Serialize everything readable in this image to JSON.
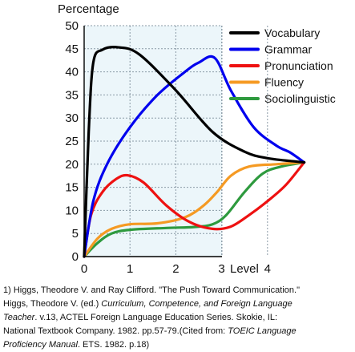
{
  "chart_data": {
    "type": "line",
    "ylabel": "Percentage",
    "xlabel": "Level",
    "xlim": [
      0,
      5
    ],
    "ylim": [
      0,
      50
    ],
    "x_ticks": [
      "0",
      "1",
      "2",
      "3",
      "4"
    ],
    "y_ticks": [
      "0",
      "5",
      "10",
      "15",
      "20",
      "25",
      "30",
      "35",
      "40",
      "45",
      "50"
    ],
    "grid": true,
    "legend_position": "right",
    "series": [
      {
        "name": "Vocabulary",
        "color": "#000000",
        "points": [
          [
            0,
            0
          ],
          [
            0.1,
            27
          ],
          [
            0.2,
            42
          ],
          [
            0.4,
            44.8
          ],
          [
            0.75,
            45.3
          ],
          [
            1.2,
            43.8
          ],
          [
            2,
            36
          ],
          [
            2.8,
            27
          ],
          [
            3.5,
            22.7
          ],
          [
            4,
            21.3
          ],
          [
            4.6,
            20.6
          ],
          [
            4.8,
            20.4
          ]
        ]
      },
      {
        "name": "Grammar",
        "color": "#0000ee",
        "points": [
          [
            0,
            0
          ],
          [
            0.2,
            12
          ],
          [
            0.5,
            20
          ],
          [
            1,
            28
          ],
          [
            1.6,
            35
          ],
          [
            2.2,
            40
          ],
          [
            2.5,
            42
          ],
          [
            2.85,
            43
          ],
          [
            3.2,
            36
          ],
          [
            3.7,
            28
          ],
          [
            4.2,
            24
          ],
          [
            4.5,
            22.5
          ],
          [
            4.8,
            20.4
          ]
        ]
      },
      {
        "name": "Pronunciation",
        "color": "#ee1111",
        "points": [
          [
            0,
            0
          ],
          [
            0.15,
            9
          ],
          [
            0.4,
            14
          ],
          [
            0.7,
            16.8
          ],
          [
            0.95,
            17.6
          ],
          [
            1.3,
            16
          ],
          [
            1.8,
            11
          ],
          [
            2.3,
            7.5
          ],
          [
            2.8,
            6
          ],
          [
            3.2,
            6.5
          ],
          [
            3.6,
            9
          ],
          [
            4,
            12
          ],
          [
            4.4,
            15.5
          ],
          [
            4.8,
            20.4
          ]
        ]
      },
      {
        "name": "Fluency",
        "color": "#f59a23",
        "points": [
          [
            0,
            0
          ],
          [
            0.3,
            4
          ],
          [
            0.6,
            6
          ],
          [
            1,
            7
          ],
          [
            1.6,
            7.2
          ],
          [
            2.2,
            8.5
          ],
          [
            2.6,
            11
          ],
          [
            2.9,
            14
          ],
          [
            3.2,
            17.5
          ],
          [
            3.6,
            19.5
          ],
          [
            4.2,
            20
          ],
          [
            4.8,
            20.4
          ]
        ]
      },
      {
        "name": "Sociolinguistic",
        "color": "#2e9a3e",
        "points": [
          [
            0,
            0
          ],
          [
            0.3,
            3
          ],
          [
            0.6,
            5
          ],
          [
            1,
            5.8
          ],
          [
            1.8,
            6.2
          ],
          [
            2.4,
            6.4
          ],
          [
            2.8,
            7
          ],
          [
            3.1,
            9
          ],
          [
            3.5,
            14
          ],
          [
            3.9,
            18
          ],
          [
            4.3,
            19.5
          ],
          [
            4.8,
            20.4
          ]
        ]
      }
    ]
  },
  "citation": {
    "line1": "1)   Higgs, Theodore V. and Ray Clifford. \"The Push Toward Communication.\"",
    "line2_a": "Higgs, Theodore V. (ed.) ",
    "line2_b": "Curriculum, Competence, and Foreign Language",
    "line3_a": "Teacher",
    "line3_b": ". v.13, ACTEL Foreign Language Education Series. Skokie, IL:",
    "line4_a": "National Textbook Company. 1982. pp.57-79.(Cited from: ",
    "line4_b": "TOEIC Language",
    "line5_a": "Proficiency Manual",
    "line5_b": ". ETS. 1982. p.18)"
  }
}
